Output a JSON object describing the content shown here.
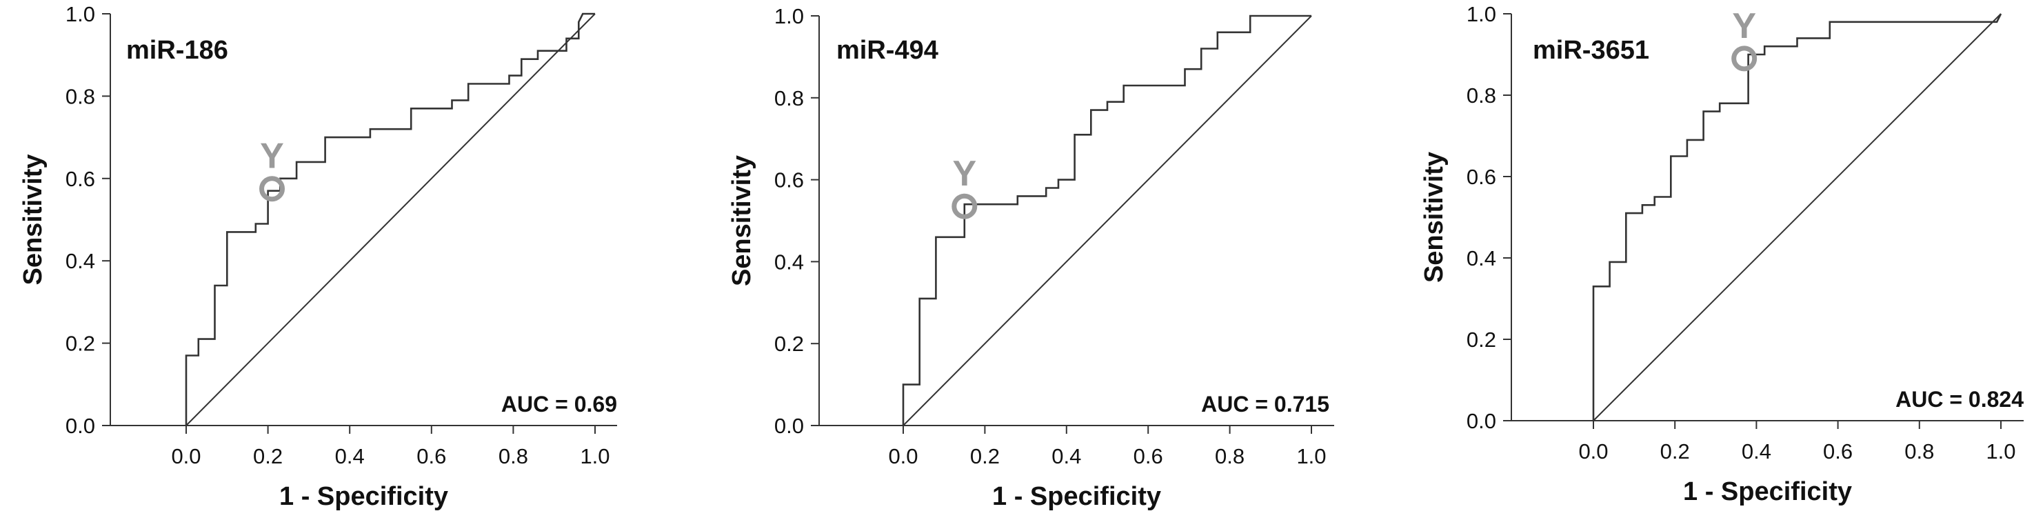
{
  "figure": {
    "panels": [
      {
        "title": "miR-186",
        "auc_label": "AUC = 0.69",
        "marker_label": "Y"
      },
      {
        "title": "miR-494",
        "auc_label": "AUC = 0.715",
        "marker_label": "Y"
      },
      {
        "title": "miR-3651",
        "auc_label": "AUC = 0.824",
        "marker_label": "Y"
      }
    ]
  },
  "chart_data": [
    {
      "type": "line",
      "title": "miR-186",
      "xlabel": "1 - Specificity",
      "ylabel": "Sensitivity",
      "xlim": [
        -0.2,
        1.05
      ],
      "ylim": [
        0,
        1.0
      ],
      "xticks": [
        "0.0",
        "0.2",
        "0.4",
        "0.6",
        "0.8",
        "1.0"
      ],
      "yticks": [
        "0.0",
        "0.2",
        "0.4",
        "0.6",
        "0.8",
        "1.0"
      ],
      "annotation": "AUC = 0.69",
      "series": [
        {
          "role": "roc",
          "color": "#333333",
          "points": [
            [
              0,
              0
            ],
            [
              0,
              0.17
            ],
            [
              0.03,
              0.17
            ],
            [
              0.03,
              0.21
            ],
            [
              0.07,
              0.21
            ],
            [
              0.07,
              0.34
            ],
            [
              0.1,
              0.34
            ],
            [
              0.1,
              0.47
            ],
            [
              0.17,
              0.47
            ],
            [
              0.17,
              0.49
            ],
            [
              0.2,
              0.49
            ],
            [
              0.2,
              0.57
            ],
            [
              0.23,
              0.57
            ],
            [
              0.23,
              0.6
            ],
            [
              0.27,
              0.6
            ],
            [
              0.27,
              0.64
            ],
            [
              0.34,
              0.64
            ],
            [
              0.34,
              0.7
            ],
            [
              0.45,
              0.7
            ],
            [
              0.45,
              0.72
            ],
            [
              0.55,
              0.72
            ],
            [
              0.55,
              0.77
            ],
            [
              0.65,
              0.77
            ],
            [
              0.65,
              0.79
            ],
            [
              0.69,
              0.79
            ],
            [
              0.69,
              0.83
            ],
            [
              0.79,
              0.83
            ],
            [
              0.79,
              0.85
            ],
            [
              0.82,
              0.85
            ],
            [
              0.82,
              0.89
            ],
            [
              0.86,
              0.89
            ],
            [
              0.86,
              0.91
            ],
            [
              0.93,
              0.91
            ],
            [
              0.93,
              0.94
            ],
            [
              0.96,
              0.94
            ],
            [
              0.96,
              0.98
            ],
            [
              0.97,
              1.0
            ],
            [
              1.0,
              1.0
            ]
          ]
        },
        {
          "role": "reference",
          "color": "#333333",
          "points": [
            [
              0,
              0
            ],
            [
              1,
              1
            ]
          ]
        }
      ],
      "optimal_point": [
        0.21,
        0.575
      ]
    },
    {
      "type": "line",
      "title": "miR-494",
      "xlabel": "1 - Specificity",
      "ylabel": "Sensitivity",
      "xlim": [
        -0.2,
        1.05
      ],
      "ylim": [
        0,
        1.0
      ],
      "xticks": [
        "0.0",
        "0.2",
        "0.4",
        "0.6",
        "0.8",
        "1.0"
      ],
      "yticks": [
        "0.0",
        "0.2",
        "0.4",
        "0.6",
        "0.8",
        "1.0"
      ],
      "annotation": "AUC = 0.715",
      "series": [
        {
          "role": "roc",
          "color": "#333333",
          "points": [
            [
              0,
              0
            ],
            [
              0,
              0.1
            ],
            [
              0.04,
              0.1
            ],
            [
              0.04,
              0.31
            ],
            [
              0.08,
              0.31
            ],
            [
              0.08,
              0.46
            ],
            [
              0.15,
              0.46
            ],
            [
              0.15,
              0.54
            ],
            [
              0.28,
              0.54
            ],
            [
              0.28,
              0.56
            ],
            [
              0.35,
              0.56
            ],
            [
              0.35,
              0.58
            ],
            [
              0.38,
              0.58
            ],
            [
              0.38,
              0.6
            ],
            [
              0.42,
              0.6
            ],
            [
              0.42,
              0.71
            ],
            [
              0.46,
              0.71
            ],
            [
              0.46,
              0.77
            ],
            [
              0.5,
              0.77
            ],
            [
              0.5,
              0.79
            ],
            [
              0.54,
              0.79
            ],
            [
              0.54,
              0.83
            ],
            [
              0.69,
              0.83
            ],
            [
              0.69,
              0.87
            ],
            [
              0.73,
              0.87
            ],
            [
              0.73,
              0.92
            ],
            [
              0.77,
              0.92
            ],
            [
              0.77,
              0.96
            ],
            [
              0.85,
              0.96
            ],
            [
              0.85,
              1.0
            ],
            [
              1.0,
              1.0
            ]
          ]
        },
        {
          "role": "reference",
          "color": "#333333",
          "points": [
            [
              0,
              0
            ],
            [
              1,
              1
            ]
          ]
        }
      ],
      "optimal_point": [
        0.15,
        0.535
      ]
    },
    {
      "type": "line",
      "title": "miR-3651",
      "xlabel": "1 - Specificity",
      "ylabel": "Sensitivity",
      "xlim": [
        -0.2,
        1.05
      ],
      "ylim": [
        0,
        1.0
      ],
      "xticks": [
        "0.0",
        "0.2",
        "0.4",
        "0.6",
        "0.8",
        "1.0"
      ],
      "yticks": [
        "0.0",
        "0.2",
        "0.4",
        "0.6",
        "0.8",
        "1.0"
      ],
      "annotation": "AUC = 0.824",
      "series": [
        {
          "role": "roc",
          "color": "#333333",
          "points": [
            [
              0,
              0
            ],
            [
              0,
              0.33
            ],
            [
              0.04,
              0.33
            ],
            [
              0.04,
              0.39
            ],
            [
              0.08,
              0.39
            ],
            [
              0.08,
              0.51
            ],
            [
              0.12,
              0.51
            ],
            [
              0.12,
              0.53
            ],
            [
              0.15,
              0.53
            ],
            [
              0.15,
              0.55
            ],
            [
              0.19,
              0.55
            ],
            [
              0.19,
              0.65
            ],
            [
              0.23,
              0.65
            ],
            [
              0.23,
              0.69
            ],
            [
              0.27,
              0.69
            ],
            [
              0.27,
              0.76
            ],
            [
              0.31,
              0.76
            ],
            [
              0.31,
              0.78
            ],
            [
              0.38,
              0.78
            ],
            [
              0.38,
              0.9
            ],
            [
              0.42,
              0.9
            ],
            [
              0.42,
              0.92
            ],
            [
              0.5,
              0.92
            ],
            [
              0.5,
              0.94
            ],
            [
              0.58,
              0.94
            ],
            [
              0.58,
              0.98
            ],
            [
              0.99,
              0.98
            ],
            [
              1.0,
              1.0
            ]
          ]
        },
        {
          "role": "reference",
          "color": "#333333",
          "points": [
            [
              0,
              0
            ],
            [
              1,
              1
            ]
          ]
        }
      ],
      "optimal_point": [
        0.37,
        0.89
      ]
    }
  ]
}
